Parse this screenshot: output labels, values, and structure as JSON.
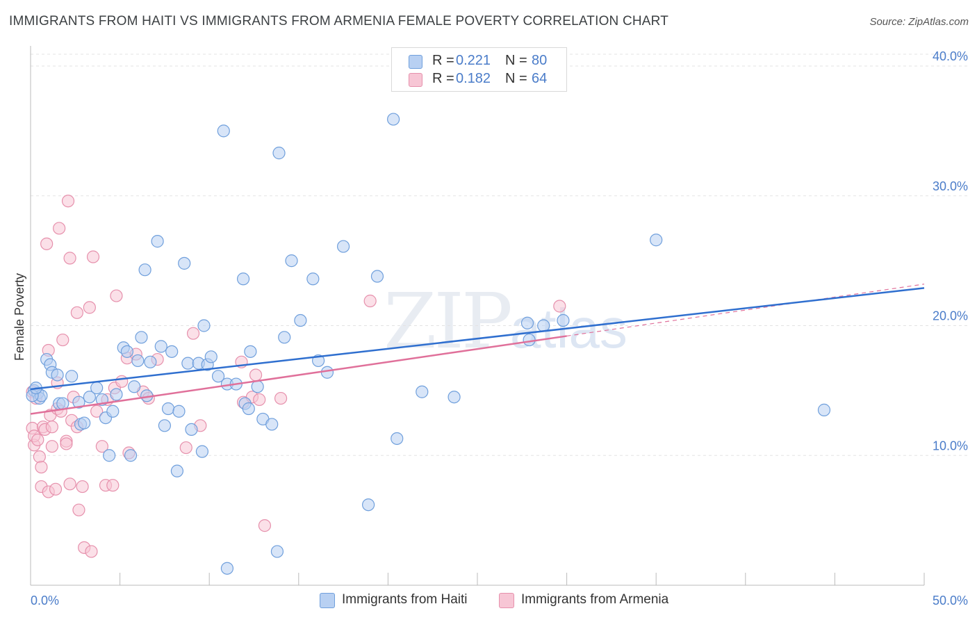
{
  "header": {
    "title": "IMMIGRANTS FROM HAITI VS IMMIGRANTS FROM ARMENIA FEMALE POVERTY CORRELATION CHART",
    "source": "Source: ZipAtlas.com"
  },
  "watermark": {
    "zip": "ZIP",
    "atlas": "atlas"
  },
  "legend": {
    "haiti": {
      "r_label": "R =",
      "r_value": "0.221",
      "n_label": "N =",
      "n_value": "80"
    },
    "armenia": {
      "r_label": "R =",
      "r_value": "0.182",
      "n_label": "N =",
      "n_value": "64"
    }
  },
  "bottom_legend": {
    "haiti": "Immigrants from Haiti",
    "armenia": "Immigrants from Armenia"
  },
  "colors": {
    "haiti_fill": "#b8d0f2",
    "haiti_stroke": "#6f9fdc",
    "haiti_line": "#2f6fcf",
    "armenia_fill": "#f7c6d5",
    "armenia_stroke": "#e690ac",
    "armenia_line": "#e0709a",
    "grid": "#e3e3e3",
    "axis_text": "#4a7cc9"
  },
  "chart_data": {
    "type": "scatter",
    "title": "IMMIGRANTS FROM HAITI VS IMMIGRANTS FROM ARMENIA FEMALE POVERTY CORRELATION CHART",
    "xlabel": "",
    "ylabel": "Female Poverty",
    "xlim": [
      0,
      50
    ],
    "ylim": [
      0,
      40
    ],
    "x_tick_labels": {
      "min": "0.0%",
      "max": "50.0%"
    },
    "y_ticks": [
      {
        "value": 10,
        "label": "10.0%"
      },
      {
        "value": 20,
        "label": "20.0%"
      },
      {
        "value": 30,
        "label": "30.0%"
      },
      {
        "value": 40,
        "label": "40.0%"
      }
    ],
    "series": [
      {
        "name": "Immigrants from Haiti",
        "R": 0.221,
        "N": 80,
        "trend": {
          "x": [
            0,
            50
          ],
          "y": [
            15.1,
            22.9
          ]
        },
        "points": [
          [
            0.2,
            15.0
          ],
          [
            0.4,
            14.8
          ],
          [
            0.5,
            14.4
          ],
          [
            0.6,
            14.6
          ],
          [
            0.9,
            17.4
          ],
          [
            1.1,
            17.0
          ],
          [
            1.2,
            16.4
          ],
          [
            1.5,
            16.2
          ],
          [
            1.6,
            14.0
          ],
          [
            1.8,
            14.0
          ],
          [
            2.3,
            16.1
          ],
          [
            2.7,
            14.1
          ],
          [
            2.8,
            12.4
          ],
          [
            3.0,
            12.5
          ],
          [
            3.3,
            14.5
          ],
          [
            3.7,
            15.2
          ],
          [
            4.0,
            14.3
          ],
          [
            4.2,
            12.9
          ],
          [
            4.4,
            10.0
          ],
          [
            4.6,
            13.4
          ],
          [
            4.8,
            14.7
          ],
          [
            5.2,
            18.3
          ],
          [
            5.4,
            18.0
          ],
          [
            5.6,
            10.0
          ],
          [
            5.8,
            15.3
          ],
          [
            6.0,
            17.3
          ],
          [
            6.2,
            19.1
          ],
          [
            6.4,
            24.3
          ],
          [
            6.5,
            14.6
          ],
          [
            6.7,
            17.2
          ],
          [
            7.1,
            26.5
          ],
          [
            7.3,
            18.4
          ],
          [
            7.5,
            12.3
          ],
          [
            7.7,
            13.6
          ],
          [
            7.9,
            18.0
          ],
          [
            8.2,
            8.8
          ],
          [
            8.3,
            13.4
          ],
          [
            8.6,
            24.8
          ],
          [
            8.8,
            17.1
          ],
          [
            9.0,
            12.0
          ],
          [
            9.4,
            17.1
          ],
          [
            9.6,
            10.3
          ],
          [
            9.7,
            20.0
          ],
          [
            9.9,
            17.0
          ],
          [
            10.1,
            17.6
          ],
          [
            10.5,
            16.1
          ],
          [
            10.8,
            35.0
          ],
          [
            11.0,
            15.5
          ],
          [
            11.0,
            1.3
          ],
          [
            11.5,
            15.5
          ],
          [
            11.9,
            23.6
          ],
          [
            12.0,
            14.0
          ],
          [
            12.2,
            13.6
          ],
          [
            12.3,
            18.0
          ],
          [
            12.7,
            15.3
          ],
          [
            13.0,
            12.8
          ],
          [
            13.5,
            12.4
          ],
          [
            13.8,
            2.6
          ],
          [
            13.9,
            33.3
          ],
          [
            14.2,
            19.1
          ],
          [
            14.6,
            25.0
          ],
          [
            15.1,
            20.4
          ],
          [
            15.8,
            23.6
          ],
          [
            16.1,
            17.3
          ],
          [
            16.6,
            16.4
          ],
          [
            17.5,
            26.1
          ],
          [
            18.9,
            6.2
          ],
          [
            19.4,
            23.8
          ],
          [
            20.3,
            35.9
          ],
          [
            20.5,
            11.3
          ],
          [
            21.9,
            14.9
          ],
          [
            23.7,
            14.5
          ],
          [
            27.8,
            20.2
          ],
          [
            27.9,
            18.9
          ],
          [
            28.7,
            20.0
          ],
          [
            29.8,
            20.4
          ],
          [
            35.0,
            26.6
          ],
          [
            44.4,
            13.5
          ],
          [
            0.1,
            14.6
          ],
          [
            0.3,
            15.2
          ]
        ]
      },
      {
        "name": "Immigrants from Armenia",
        "R": 0.182,
        "N": 64,
        "trend": {
          "x": [
            0,
            30
          ],
          "y": [
            13.2,
            19.2
          ]
        },
        "trend_extension": {
          "x": [
            30,
            50
          ],
          "y": [
            19.2,
            23.2
          ]
        },
        "points": [
          [
            0.1,
            14.9
          ],
          [
            0.1,
            12.1
          ],
          [
            0.2,
            10.8
          ],
          [
            0.2,
            11.5
          ],
          [
            0.3,
            14.4
          ],
          [
            0.4,
            11.2
          ],
          [
            0.5,
            9.9
          ],
          [
            0.6,
            9.1
          ],
          [
            0.6,
            7.6
          ],
          [
            0.7,
            12.2
          ],
          [
            0.8,
            12.0
          ],
          [
            0.9,
            26.3
          ],
          [
            1.0,
            18.1
          ],
          [
            1.0,
            7.2
          ],
          [
            1.1,
            13.1
          ],
          [
            1.2,
            10.7
          ],
          [
            1.2,
            12.2
          ],
          [
            1.4,
            7.4
          ],
          [
            1.5,
            13.6
          ],
          [
            1.5,
            15.6
          ],
          [
            1.6,
            27.5
          ],
          [
            1.7,
            13.4
          ],
          [
            1.8,
            18.9
          ],
          [
            2.0,
            11.1
          ],
          [
            2.0,
            10.9
          ],
          [
            2.1,
            29.6
          ],
          [
            2.2,
            25.2
          ],
          [
            2.2,
            7.8
          ],
          [
            2.3,
            12.7
          ],
          [
            2.4,
            14.5
          ],
          [
            2.6,
            21.0
          ],
          [
            2.6,
            12.2
          ],
          [
            2.7,
            5.8
          ],
          [
            2.9,
            7.6
          ],
          [
            3.0,
            2.9
          ],
          [
            3.3,
            21.4
          ],
          [
            3.4,
            2.6
          ],
          [
            3.5,
            25.3
          ],
          [
            3.7,
            13.4
          ],
          [
            4.0,
            10.7
          ],
          [
            4.2,
            7.7
          ],
          [
            4.3,
            14.3
          ],
          [
            4.6,
            7.7
          ],
          [
            4.7,
            15.2
          ],
          [
            4.8,
            22.3
          ],
          [
            5.1,
            15.7
          ],
          [
            5.4,
            17.5
          ],
          [
            5.5,
            10.2
          ],
          [
            5.9,
            17.8
          ],
          [
            6.3,
            14.9
          ],
          [
            6.6,
            14.4
          ],
          [
            7.1,
            17.4
          ],
          [
            8.7,
            10.6
          ],
          [
            9.1,
            19.4
          ],
          [
            9.5,
            12.3
          ],
          [
            11.8,
            17.2
          ],
          [
            11.9,
            14.1
          ],
          [
            12.4,
            14.5
          ],
          [
            12.6,
            16.2
          ],
          [
            12.8,
            14.3
          ],
          [
            13.1,
            4.6
          ],
          [
            14.0,
            14.4
          ],
          [
            19.0,
            21.9
          ],
          [
            29.6,
            21.5
          ]
        ]
      }
    ]
  }
}
